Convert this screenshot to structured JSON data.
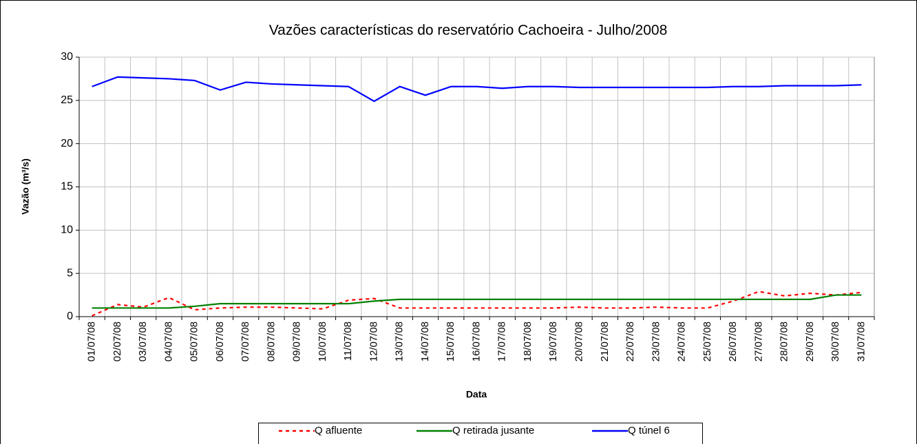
{
  "chart_data": {
    "type": "line",
    "title": "Vazões características do reservatório Cachoeira - Julho/2008",
    "x_label": "Data",
    "y_label": "Vazão (m³/s)",
    "categories": [
      "01/07/08",
      "02/07/08",
      "03/07/08",
      "04/07/08",
      "05/07/08",
      "06/07/08",
      "07/07/08",
      "08/07/08",
      "09/07/08",
      "10/07/08",
      "11/07/08",
      "12/07/08",
      "13/07/08",
      "14/07/08",
      "15/07/08",
      "16/07/08",
      "17/07/08",
      "18/07/08",
      "19/07/08",
      "20/07/08",
      "21/07/08",
      "22/07/08",
      "23/07/08",
      "24/07/08",
      "25/07/08",
      "26/07/08",
      "27/07/08",
      "28/07/08",
      "29/07/08",
      "30/07/08",
      "31/07/08"
    ],
    "series": [
      {
        "name": "Q afluente",
        "color": "#ff0000",
        "dash": true,
        "values": [
          0.1,
          1.4,
          1.1,
          2.2,
          0.8,
          1.0,
          1.1,
          1.1,
          1.0,
          0.9,
          1.9,
          2.1,
          1.0,
          1.0,
          1.0,
          1.0,
          1.0,
          1.0,
          1.0,
          1.1,
          1.0,
          1.0,
          1.1,
          1.0,
          1.0,
          1.8,
          2.9,
          2.4,
          2.7,
          2.5,
          2.8
        ]
      },
      {
        "name": "Q retirada jusante",
        "color": "#008000",
        "values": [
          1.0,
          1.0,
          1.0,
          1.0,
          1.2,
          1.5,
          1.5,
          1.5,
          1.5,
          1.5,
          1.5,
          1.8,
          2.0,
          2.0,
          2.0,
          2.0,
          2.0,
          2.0,
          2.0,
          2.0,
          2.0,
          2.0,
          2.0,
          2.0,
          2.0,
          2.0,
          2.0,
          2.0,
          2.0,
          2.5,
          2.5
        ]
      },
      {
        "name": "Q túnel 6",
        "color": "#0000ff",
        "values": [
          26.6,
          27.7,
          27.6,
          27.5,
          27.3,
          26.2,
          27.1,
          26.9,
          26.8,
          26.7,
          26.6,
          24.9,
          26.6,
          25.6,
          26.6,
          26.6,
          26.4,
          26.6,
          26.6,
          26.5,
          26.5,
          26.5,
          26.5,
          26.5,
          26.5,
          26.6,
          26.6,
          26.7,
          26.7,
          26.7,
          26.8
        ]
      }
    ],
    "ylim": [
      0,
      30
    ],
    "yticks": [
      0,
      5,
      10,
      15,
      20,
      25,
      30
    ],
    "grid": true,
    "legend": "bottom"
  }
}
